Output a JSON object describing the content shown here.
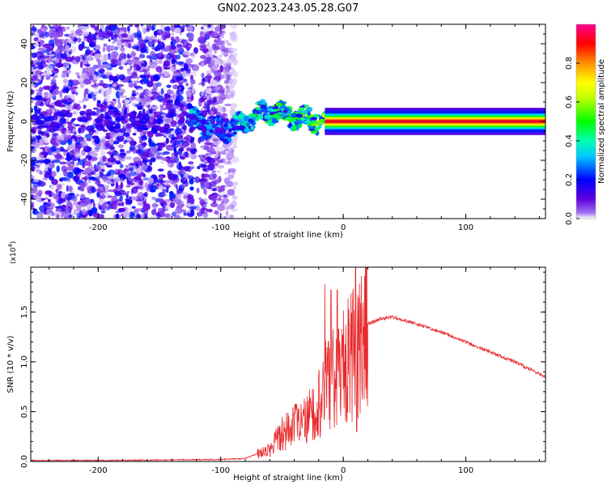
{
  "title": "GN02.2023.243.05.28.G07",
  "chart_data": [
    {
      "type": "heatmap",
      "xlabel": "Height of straight line (km)",
      "ylabel": "Frequency (Hz)",
      "xlim": [
        -255,
        165
      ],
      "ylim": [
        -50,
        50
      ],
      "xticks": [
        -200,
        -100,
        0,
        100
      ],
      "yticks": [
        -40,
        -20,
        0,
        20,
        40
      ],
      "colorbar": {
        "label": "Normalized spectral amplitude",
        "range": [
          0,
          1
        ],
        "ticks": [
          "0.0",
          "0.2",
          "0.4",
          "0.6",
          "0.8"
        ],
        "colors": [
          "#ffffff",
          "#7a00e6",
          "#0000ff",
          "#00e5ff",
          "#00ff00",
          "#ffff00",
          "#ff8000",
          "#ff0000",
          "#ff0080"
        ]
      },
      "noise_region_x": [
        -255,
        -88
      ],
      "signal_track": [
        {
          "x": -120,
          "freq": 0,
          "amp": 0.35
        },
        {
          "x": -100,
          "freq": -5,
          "amp": 0.3
        },
        {
          "x": -85,
          "freq": -2,
          "amp": 0.4
        },
        {
          "x": -70,
          "freq": 3,
          "amp": 0.5
        },
        {
          "x": -55,
          "freq": 6,
          "amp": 0.5
        },
        {
          "x": -40,
          "freq": 2,
          "amp": 0.55
        },
        {
          "x": -25,
          "freq": 1,
          "amp": 0.6
        },
        {
          "x": -10,
          "freq": 0,
          "amp": 0.7
        },
        {
          "x": 0,
          "freq": 0,
          "amp": 0.85
        },
        {
          "x": 160,
          "freq": 0,
          "amp": 0.9
        }
      ]
    },
    {
      "type": "line",
      "xlabel": "Height of straight line (km)",
      "ylabel": "SNR (10 * v/v)",
      "yscale_label": "(x10",
      "yscale_exp": "4",
      "yscale_close": ")",
      "xlim": [
        -255,
        165
      ],
      "ylim": [
        0,
        1.95
      ],
      "xticks": [
        -200,
        -100,
        0,
        100
      ],
      "yticks": [
        "0.0",
        "0.5",
        "1.0",
        "1.5"
      ],
      "color": "#e8282b",
      "x": [
        -255,
        -200,
        -150,
        -100,
        -80,
        -60,
        -50,
        -40,
        -30,
        -20,
        -10,
        0,
        10,
        20,
        30,
        40,
        60,
        80,
        100,
        120,
        140,
        165
      ],
      "y": [
        0.01,
        0.01,
        0.015,
        0.02,
        0.03,
        0.12,
        0.3,
        0.35,
        0.4,
        0.6,
        0.85,
        0.95,
        1.1,
        1.38,
        1.43,
        1.45,
        1.38,
        1.3,
        1.2,
        1.1,
        1.0,
        0.85
      ]
    }
  ]
}
